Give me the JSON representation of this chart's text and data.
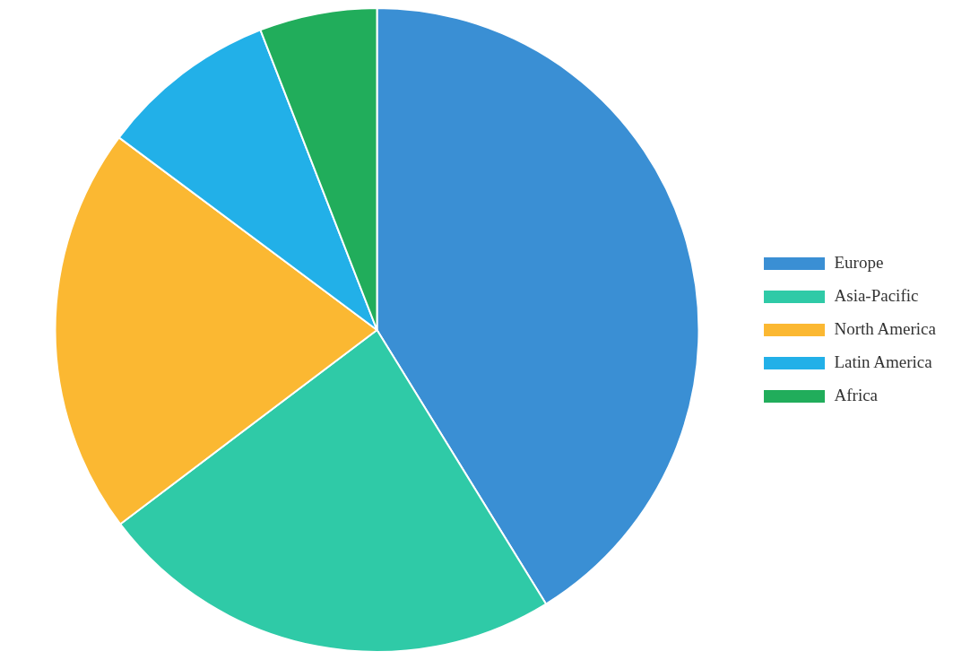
{
  "chart_data": {
    "type": "pie",
    "categories": [
      "Europe",
      "Asia-Pacific",
      "North America",
      "Latin America",
      "Africa"
    ],
    "values": [
      41.2,
      23.5,
      20.5,
      8.9,
      5.9
    ],
    "colors": [
      "#3a8fd4",
      "#2fcaa7",
      "#fbb832",
      "#22b0e8",
      "#21ad5b"
    ],
    "legend": "right"
  }
}
